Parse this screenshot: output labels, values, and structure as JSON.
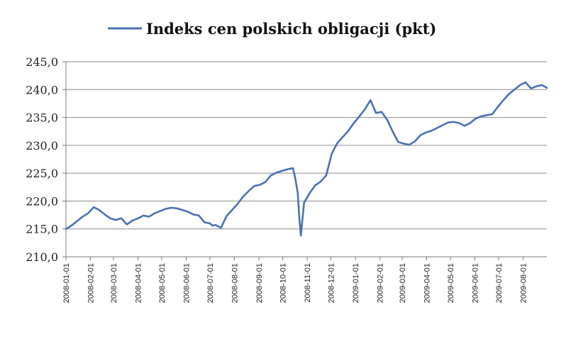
{
  "chart_data": {
    "type": "line",
    "title": "",
    "xlabel": "",
    "ylabel": "",
    "ylim": [
      210,
      245
    ],
    "y_ticks": [
      "245,0",
      "240,0",
      "235,0",
      "230,0",
      "225,0",
      "220,0",
      "215,0",
      "210,0"
    ],
    "y_tick_values": [
      245,
      240,
      235,
      230,
      225,
      220,
      215,
      210
    ],
    "x_ticks": [
      "2008-01-01",
      "2008-02-01",
      "2008-03-01",
      "2008-04-01",
      "2008-05-01",
      "2008-06-01",
      "2008-07-01",
      "2008-08-01",
      "2008-09-01",
      "2008-10-01",
      "2008-11-01",
      "2008-12-01",
      "2009-01-01",
      "2009-02-01",
      "2009-03-01",
      "2009-04-01",
      "2009-05-01",
      "2009-06-01",
      "2009-07-01",
      "2009-08-01"
    ],
    "xlim": [
      "2008-01-01",
      "2009-08-31"
    ],
    "grid": "horizontal",
    "legend": "top",
    "series": [
      {
        "name": "Indeks cen polskich obligacji (pkt)",
        "color": "#4a72b0",
        "x": [
          "2008-01-01",
          "2008-01-08",
          "2008-01-15",
          "2008-01-22",
          "2008-01-29",
          "2008-02-05",
          "2008-02-12",
          "2008-02-19",
          "2008-02-26",
          "2008-03-04",
          "2008-03-11",
          "2008-03-18",
          "2008-03-25",
          "2008-04-01",
          "2008-04-08",
          "2008-04-15",
          "2008-04-22",
          "2008-04-29",
          "2008-05-06",
          "2008-05-13",
          "2008-05-20",
          "2008-05-27",
          "2008-06-03",
          "2008-06-10",
          "2008-06-17",
          "2008-06-24",
          "2008-07-01",
          "2008-07-04",
          "2008-07-08",
          "2008-07-15",
          "2008-07-22",
          "2008-07-29",
          "2008-08-05",
          "2008-08-12",
          "2008-08-19",
          "2008-08-26",
          "2008-09-02",
          "2008-09-09",
          "2008-09-16",
          "2008-09-23",
          "2008-09-30",
          "2008-10-07",
          "2008-10-14",
          "2008-10-17",
          "2008-10-20",
          "2008-10-22",
          "2008-10-24",
          "2008-10-28",
          "2008-11-04",
          "2008-11-11",
          "2008-11-18",
          "2008-11-25",
          "2008-12-02",
          "2008-12-09",
          "2008-12-16",
          "2008-12-23",
          "2008-12-30",
          "2009-01-06",
          "2009-01-13",
          "2009-01-20",
          "2009-01-27",
          "2009-02-03",
          "2009-02-10",
          "2009-02-17",
          "2009-02-24",
          "2009-03-03",
          "2009-03-10",
          "2009-03-17",
          "2009-03-24",
          "2009-03-31",
          "2009-04-07",
          "2009-04-14",
          "2009-04-21",
          "2009-04-28",
          "2009-05-05",
          "2009-05-12",
          "2009-05-19",
          "2009-05-26",
          "2009-06-02",
          "2009-06-09",
          "2009-06-16",
          "2009-06-23",
          "2009-06-30",
          "2009-07-07",
          "2009-07-14",
          "2009-07-21",
          "2009-07-28",
          "2009-08-04",
          "2009-08-11",
          "2009-08-18",
          "2009-08-25",
          "2009-08-31"
        ],
        "y": [
          215.0,
          215.6,
          216.4,
          217.2,
          217.8,
          218.9,
          218.4,
          217.6,
          216.9,
          216.6,
          216.9,
          215.8,
          216.5,
          216.9,
          217.4,
          217.2,
          217.8,
          218.2,
          218.6,
          218.8,
          218.7,
          218.4,
          218.1,
          217.6,
          217.4,
          216.2,
          216.0,
          215.6,
          215.7,
          215.2,
          217.3,
          218.4,
          219.5,
          220.8,
          221.8,
          222.7,
          222.9,
          223.4,
          224.6,
          225.1,
          225.4,
          225.7,
          225.9,
          224.0,
          221.5,
          217.0,
          213.8,
          219.7,
          221.4,
          222.8,
          223.5,
          224.6,
          228.5,
          230.4,
          231.5,
          232.6,
          234.0,
          235.2,
          236.5,
          238.1,
          235.8,
          236.0,
          234.6,
          232.5,
          230.6,
          230.3,
          230.1,
          230.7,
          231.8,
          232.3,
          232.6,
          233.1,
          233.6,
          234.1,
          234.2,
          234.0,
          233.5,
          234.0,
          234.8,
          235.2,
          235.4,
          235.6,
          236.9,
          238.1,
          239.2,
          240.0,
          240.8,
          241.3,
          240.2,
          240.6,
          240.8,
          240.3
        ]
      }
    ]
  }
}
